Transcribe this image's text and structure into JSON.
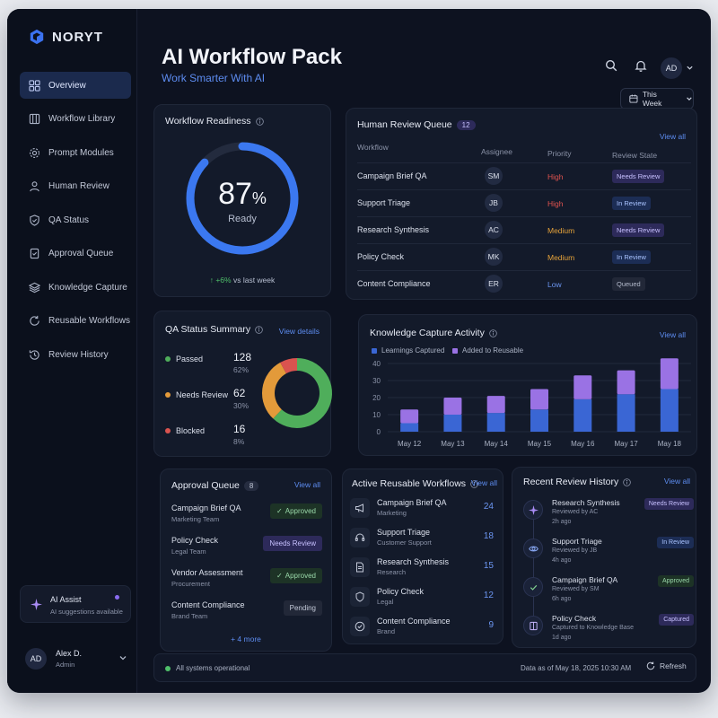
{
  "brand": {
    "name": "NORYT"
  },
  "sidebar": {
    "items": [
      {
        "label": "Overview",
        "icon": "grid-icon",
        "active": true
      },
      {
        "label": "Workflow Library",
        "icon": "library-icon"
      },
      {
        "label": "Prompt Modules",
        "icon": "gear-icon"
      },
      {
        "label": "Human Review",
        "icon": "user-icon"
      },
      {
        "label": "QA Status",
        "icon": "shield-icon"
      },
      {
        "label": "Approval Queue",
        "icon": "clipboard-icon"
      },
      {
        "label": "Knowledge Capture",
        "icon": "layers-icon"
      },
      {
        "label": "Reusable Workflows",
        "icon": "refresh-icon"
      },
      {
        "label": "Review History",
        "icon": "history-icon"
      }
    ],
    "ai_assist": {
      "title": "AI Assist",
      "subtitle": "AI suggestions available"
    },
    "user": {
      "initials": "AD",
      "name": "Alex D.",
      "role": "Admin"
    }
  },
  "header": {
    "title": "AI Workflow Pack",
    "subtitle": "Work Smarter With AI",
    "avatar_initials": "AD",
    "period": "This Week"
  },
  "readiness": {
    "title": "Workflow Readiness",
    "percent_value": 87,
    "percent": "87",
    "percent_sign": "%",
    "label": "Ready",
    "delta": "+6%",
    "delta_suffix": "vs last week"
  },
  "review_queue": {
    "title": "Human Review Queue",
    "count": "12",
    "view_all": "View all",
    "columns": {
      "workflow": "Workflow",
      "assignee": "Assignee",
      "priority": "Priority",
      "state": "Review State"
    },
    "rows": [
      {
        "workflow": "Campaign Brief QA",
        "assignee": "SM",
        "priority": "High",
        "state": "Needs Review"
      },
      {
        "workflow": "Support Triage",
        "assignee": "JB",
        "priority": "High",
        "state": "In Review"
      },
      {
        "workflow": "Research Synthesis",
        "assignee": "AC",
        "priority": "Medium",
        "state": "Needs Review"
      },
      {
        "workflow": "Policy Check",
        "assignee": "MK",
        "priority": "Medium",
        "state": "In Review"
      },
      {
        "workflow": "Content Compliance",
        "assignee": "ER",
        "priority": "Low",
        "state": "Queued"
      }
    ],
    "priority_colors": {
      "High": "#e0534f",
      "Medium": "#e5a23a",
      "Low": "#6c96f2"
    }
  },
  "qa_summary": {
    "title": "QA Status Summary",
    "view_details": "View details",
    "items": [
      {
        "label": "Passed",
        "count": "128",
        "pct": "62%",
        "value": 62,
        "color": "#4fae5b"
      },
      {
        "label": "Needs Review",
        "count": "62",
        "pct": "30%",
        "value": 30,
        "color": "#e39a3a"
      },
      {
        "label": "Blocked",
        "count": "16",
        "pct": "8%",
        "value": 8,
        "color": "#d9534f"
      }
    ]
  },
  "knowledge": {
    "title": "Knowledge Capture Activity",
    "view_all": "View all",
    "chart_data": {
      "type": "bar",
      "stacked": true,
      "categories": [
        "May 12",
        "May 13",
        "May 14",
        "May 15",
        "May 16",
        "May 17",
        "May 18"
      ],
      "series": [
        {
          "name": "Learnings Captured",
          "values": [
            5,
            10,
            11,
            13,
            19,
            22,
            25
          ],
          "color": "#3a66d4"
        },
        {
          "name": "Added to Reusable",
          "values": [
            8,
            10,
            10,
            12,
            14,
            14,
            18
          ],
          "color": "#9a72e4"
        }
      ],
      "yticks": [
        "0",
        "10",
        "20",
        "30",
        "40"
      ],
      "ylim": [
        0,
        40
      ],
      "grid": true,
      "legend": "top-left"
    }
  },
  "approval_queue": {
    "title": "Approval Queue",
    "count": "8",
    "view_all": "View all",
    "items": [
      {
        "title": "Campaign Brief QA",
        "sub": "Marketing Team",
        "status": "Approved"
      },
      {
        "title": "Policy Check",
        "sub": "Legal Team",
        "status": "Needs Review"
      },
      {
        "title": "Vendor Assessment",
        "sub": "Procurement",
        "status": "Approved"
      },
      {
        "title": "Content Compliance",
        "sub": "Brand Team",
        "status": "Pending"
      }
    ],
    "more": "+ 4 more"
  },
  "reusable": {
    "title": "Active Reusable Workflows",
    "view_all": "View all",
    "items": [
      {
        "title": "Campaign Brief QA",
        "sub": "Marketing",
        "count": "24",
        "icon": "megaphone-icon"
      },
      {
        "title": "Support Triage",
        "sub": "Customer Support",
        "count": "18",
        "icon": "headset-icon"
      },
      {
        "title": "Research Synthesis",
        "sub": "Research",
        "count": "15",
        "icon": "document-icon"
      },
      {
        "title": "Policy Check",
        "sub": "Legal",
        "count": "12",
        "icon": "shield-icon"
      },
      {
        "title": "Content Compliance",
        "sub": "Brand",
        "count": "9",
        "icon": "check-circle-icon"
      }
    ]
  },
  "history": {
    "title": "Recent Review History",
    "view_all": "View all",
    "items": [
      {
        "title": "Research Synthesis",
        "by": "Reviewed by AC",
        "ago": "2h ago",
        "state": "Needs Review",
        "icon": "sparkle-icon"
      },
      {
        "title": "Support Triage",
        "by": "Reviewed by JB",
        "ago": "4h ago",
        "state": "In Review",
        "icon": "eye-icon"
      },
      {
        "title": "Campaign Brief QA",
        "by": "Reviewed by SM",
        "ago": "6h ago",
        "state": "Approved",
        "icon": "check-icon"
      },
      {
        "title": "Policy Check",
        "by": "Captured to Knowledge Base",
        "ago": "1d ago",
        "state": "Captured",
        "icon": "book-icon"
      }
    ]
  },
  "status_bar": {
    "status": "All systems operational",
    "as_of": "Data as of May 18, 2025 10:30 AM",
    "refresh": "Refresh"
  }
}
